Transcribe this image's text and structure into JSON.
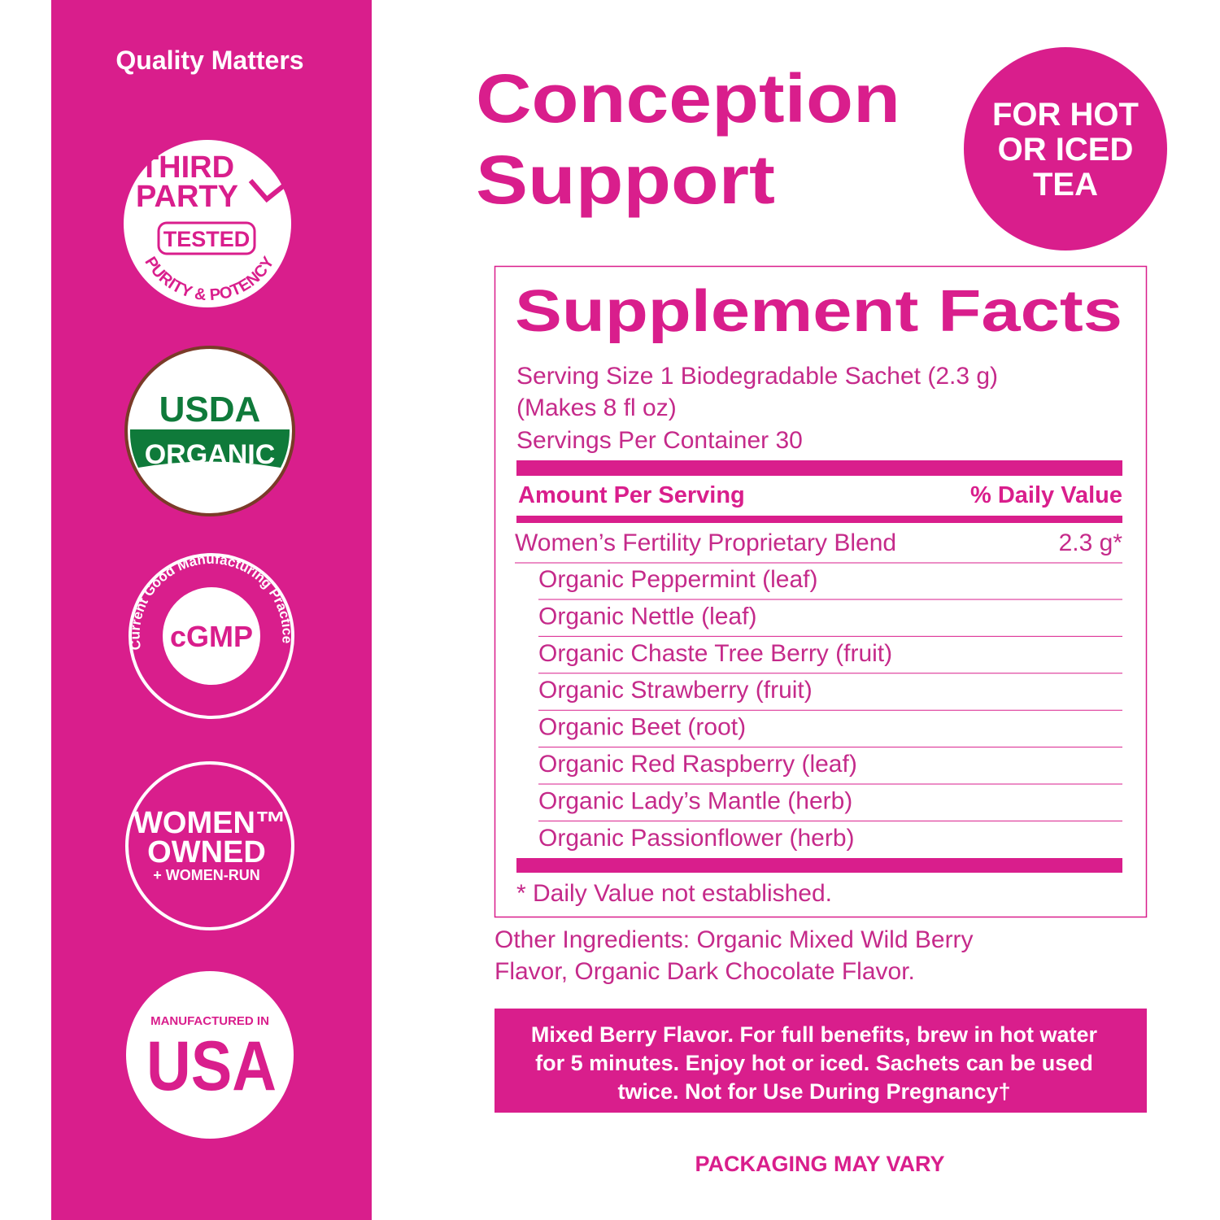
{
  "sidebar": {
    "heading": "Quality Matters",
    "third_party": {
      "lines": [
        "THIRD",
        "PARTY"
      ],
      "tested": "TESTED",
      "arc": "PURITY & POTENCY"
    },
    "usda": {
      "top": "USDA",
      "band": "ORGANIC"
    },
    "cgmp": {
      "center": "cGMP",
      "arc": "Current Good Manufacturing Practice"
    },
    "women": {
      "lines": [
        "WOMEN™",
        "OWNED"
      ],
      "sub": "+ WOMEN-RUN"
    },
    "usa": {
      "top": "MANUFACTURED IN",
      "main": "USA"
    }
  },
  "title": [
    "Conception",
    "Support"
  ],
  "badge": [
    "FOR HOT",
    "OR ICED",
    "TEA"
  ],
  "facts": {
    "title": "Supplement Facts",
    "serving": [
      "Serving Size 1 Biodegradable Sachet (2.3 g)",
      "(Makes 8 fl oz)",
      "Servings Per Container 30"
    ],
    "header": [
      "Amount Per Serving",
      "% Daily Value"
    ],
    "blend": {
      "name": "Women’s Fertility Proprietary Blend",
      "amount": "2.3 g*"
    },
    "ingredients": [
      "Organic Peppermint (leaf)",
      "Organic Nettle (leaf)",
      "Organic Chaste Tree Berry (fruit)",
      "Organic Strawberry (fruit)",
      "Organic Beet (root)",
      "Organic Red Raspberry (leaf)",
      "Organic Lady’s Mantle (herb)",
      "Organic Passionflower (herb)"
    ],
    "footnote": "* Daily Value not established."
  },
  "other_ingredients": [
    "Other Ingredients: Organic Mixed Wild Berry",
    "Flavor, Organic Dark Chocolate Flavor."
  ],
  "instructions": [
    "Mixed Berry Flavor. For full benefits, brew in hot water",
    "for 5 minutes. Enjoy hot or iced. Sachets can be used",
    "twice. Not for Use During Pregnancy†"
  ],
  "packaging": "PACKAGING MAY VARY"
}
